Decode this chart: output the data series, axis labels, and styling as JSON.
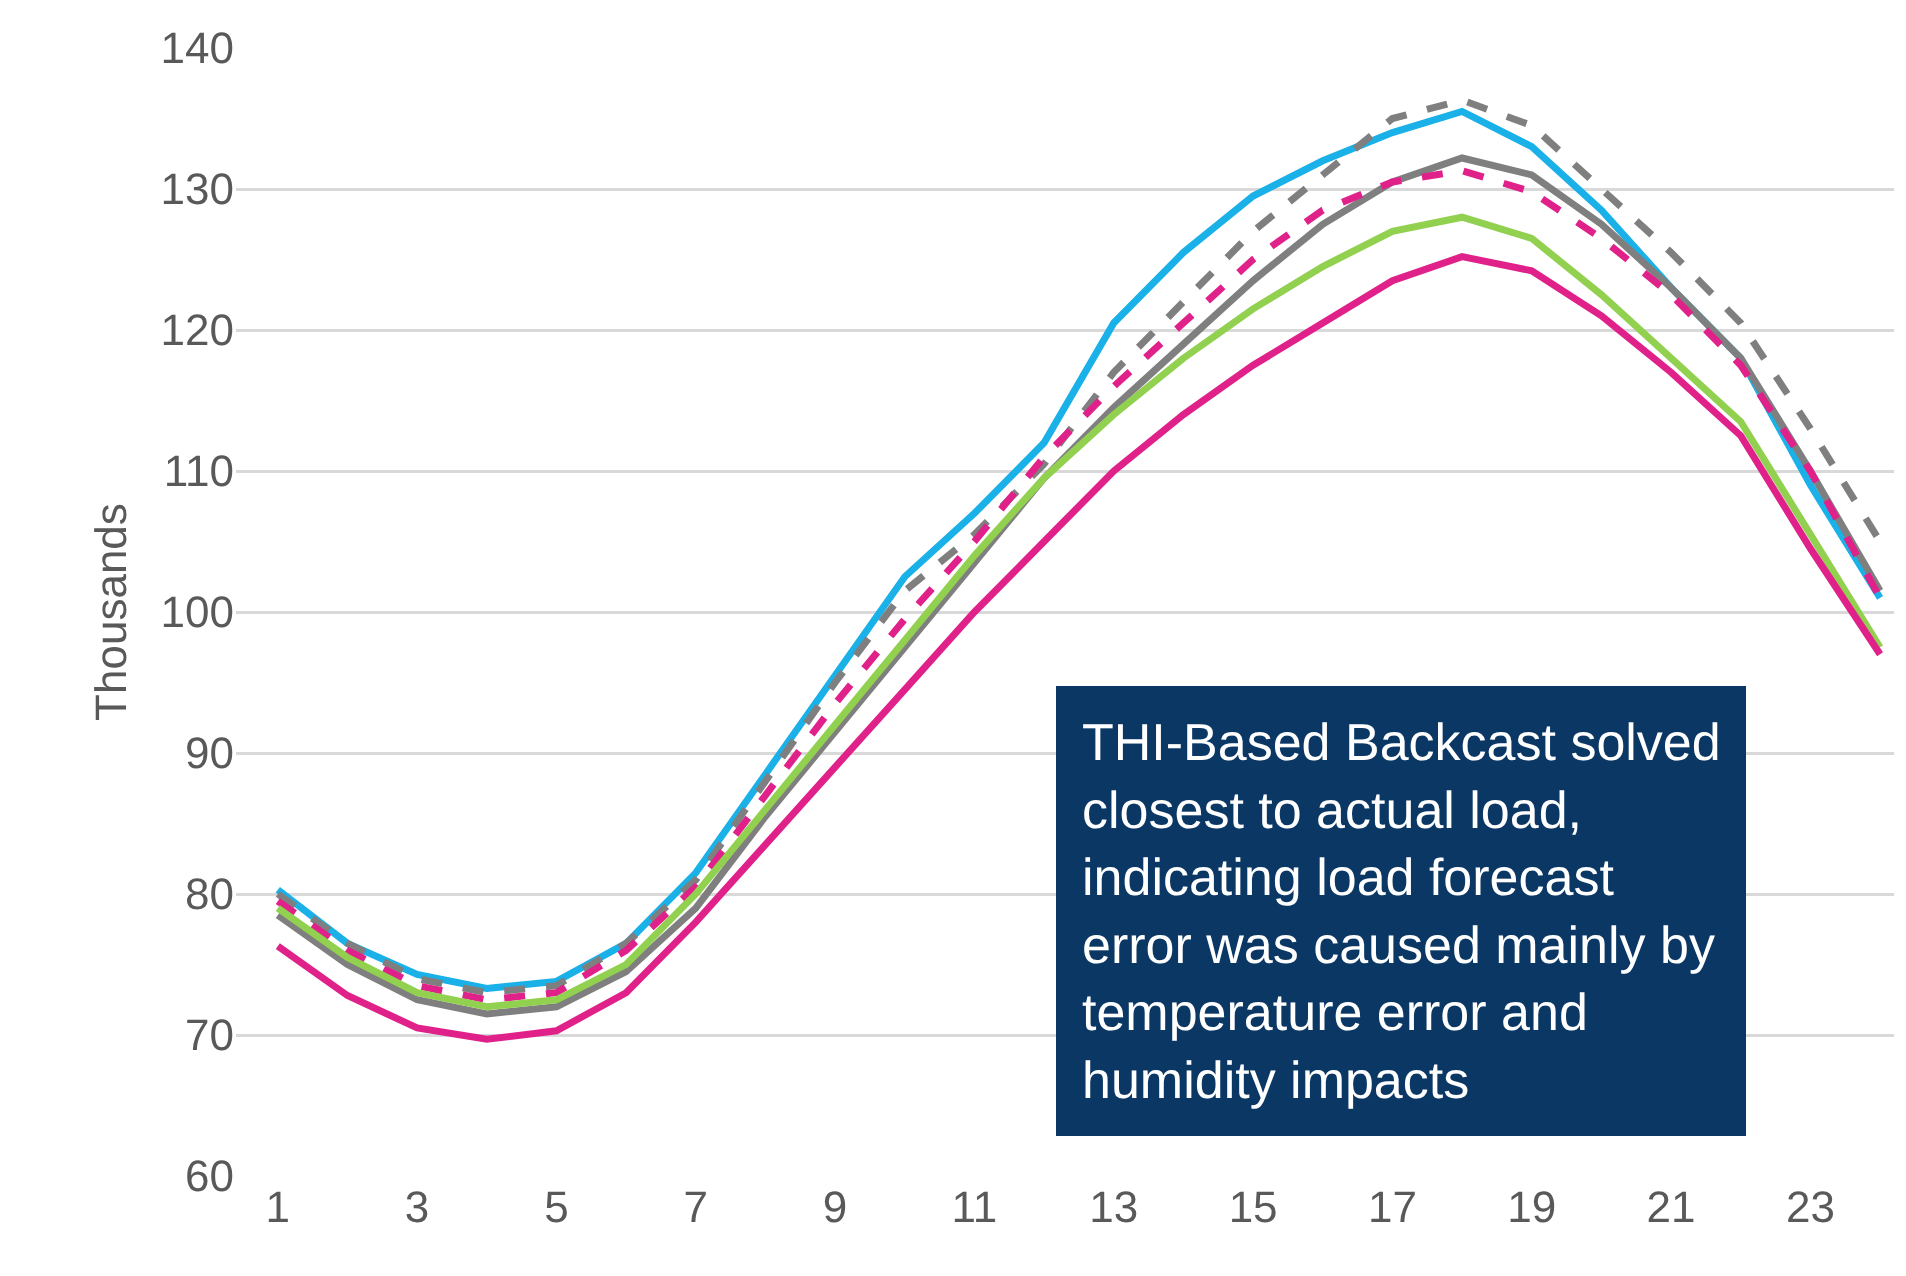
{
  "chart_data": {
    "type": "line",
    "ylabel": "Thousands",
    "x": [
      1,
      2,
      3,
      4,
      5,
      6,
      7,
      8,
      9,
      10,
      11,
      12,
      13,
      14,
      15,
      16,
      17,
      18,
      19,
      20,
      21,
      22,
      23,
      24
    ],
    "xlim": [
      0.4,
      24.2
    ],
    "xticks": [
      1,
      3,
      5,
      7,
      9,
      11,
      13,
      15,
      17,
      19,
      21,
      23
    ],
    "ylim": [
      60,
      140
    ],
    "yticks": [
      60,
      70,
      80,
      90,
      100,
      110,
      120,
      130,
      140
    ],
    "grid": "y",
    "marker": "none",
    "series": [
      {
        "color": "#1ab0e8",
        "line_style": "solid",
        "values": [
          80.3,
          76.5,
          74.3,
          73.3,
          73.8,
          76.5,
          81.5,
          88.5,
          95.5,
          102.5,
          107,
          112,
          120.5,
          125.5,
          129.5,
          132,
          134,
          135.5,
          133,
          128.5,
          123,
          118,
          109,
          101
        ]
      },
      {
        "color": "#7f7f7f",
        "line_style": "dashed",
        "values": [
          80,
          76.5,
          74,
          73,
          73.5,
          76.5,
          81,
          88,
          95,
          101.5,
          105.5,
          110.5,
          117,
          122,
          127,
          131,
          135,
          136.3,
          134.5,
          130,
          125.5,
          120.5,
          113,
          105
        ]
      },
      {
        "color": "#7f7f7f",
        "line_style": "solid",
        "values": [
          78.5,
          75,
          72.5,
          71.5,
          72,
          74.5,
          79,
          85.5,
          91.5,
          97.5,
          103.5,
          109.5,
          114.5,
          119,
          123.5,
          127.5,
          130.5,
          132.2,
          131,
          127.5,
          123,
          118,
          110,
          101.5
        ]
      },
      {
        "color": "#e0218a",
        "line_style": "dashed",
        "values": [
          79.5,
          76,
          73.5,
          72.5,
          73,
          76,
          80.5,
          87,
          93.5,
          99.5,
          105,
          111,
          116,
          120.5,
          125,
          128.5,
          130.5,
          131.3,
          129.8,
          126.5,
          122.5,
          117.5,
          110,
          101
        ]
      },
      {
        "color": "#92d050",
        "line_style": "solid",
        "values": [
          79,
          75.5,
          73,
          72,
          72.5,
          75,
          80,
          86,
          92,
          98,
          104,
          109.5,
          114,
          118,
          121.5,
          124.5,
          127,
          128,
          126.5,
          122.5,
          118,
          113.5,
          105.5,
          97.5
        ]
      },
      {
        "color": "#e0218a",
        "line_style": "solid",
        "values": [
          76.3,
          72.8,
          70.5,
          69.7,
          70.3,
          73,
          78,
          83.5,
          89,
          94.5,
          100,
          105,
          110,
          114,
          117.5,
          120.5,
          123.5,
          125.2,
          124.2,
          121,
          117,
          112.5,
          104.5,
          97
        ]
      }
    ],
    "annotations": [
      "THI-Based Backcast solved closest to actual load, indicating load forecast error was caused mainly by temperature error and humidity impacts"
    ]
  }
}
